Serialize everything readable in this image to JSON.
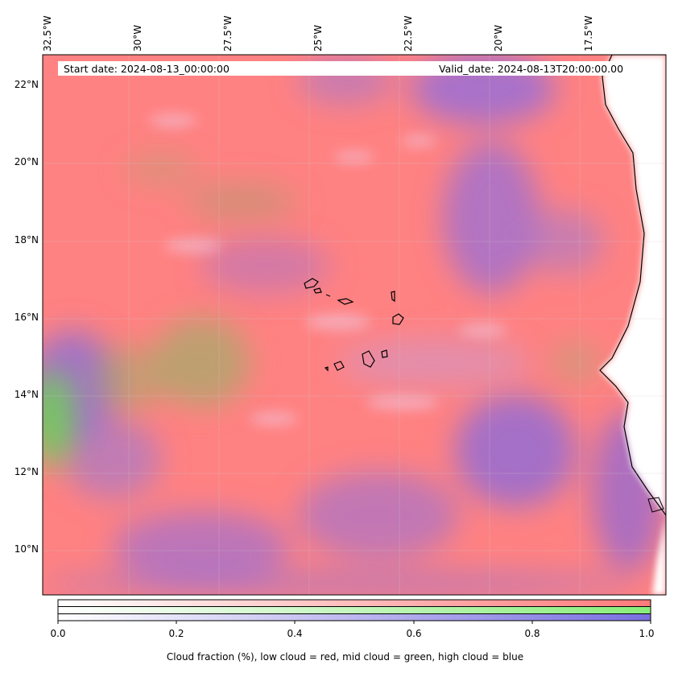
{
  "map": {
    "longitude_labels": [
      "32.5°W",
      "30°W",
      "27.5°W",
      "25°W",
      "22.5°W",
      "20°W",
      "17.5°W"
    ],
    "latitude_labels": [
      "22°N",
      "20°N",
      "18°N",
      "16°N",
      "14°N",
      "12°N",
      "10°N"
    ],
    "start_date_text": "Start date: 2024-08-13_00:00:00",
    "valid_date_text": "Valid_date: 2024-08-13T20:00:00.00",
    "land_color": "#ffffff",
    "coastline_color": "#000000",
    "layers": [
      {
        "name": "low cloud",
        "color": "#ff7f7f"
      },
      {
        "name": "mid cloud",
        "color": "#7fe07f"
      },
      {
        "name": "high cloud",
        "color": "#8a6fd8"
      }
    ]
  },
  "colorbar": {
    "ticks": [
      "0.0",
      "0.2",
      "0.4",
      "0.6",
      "0.8",
      "1.0"
    ],
    "range": [
      0.0,
      1.0
    ],
    "caption": "Cloud fraction (%), low cloud = red, mid cloud = green, high cloud = blue",
    "colors": {
      "low": "#ff7a7a",
      "mid": "#88ee7a",
      "high": "#7a6fe0"
    }
  }
}
